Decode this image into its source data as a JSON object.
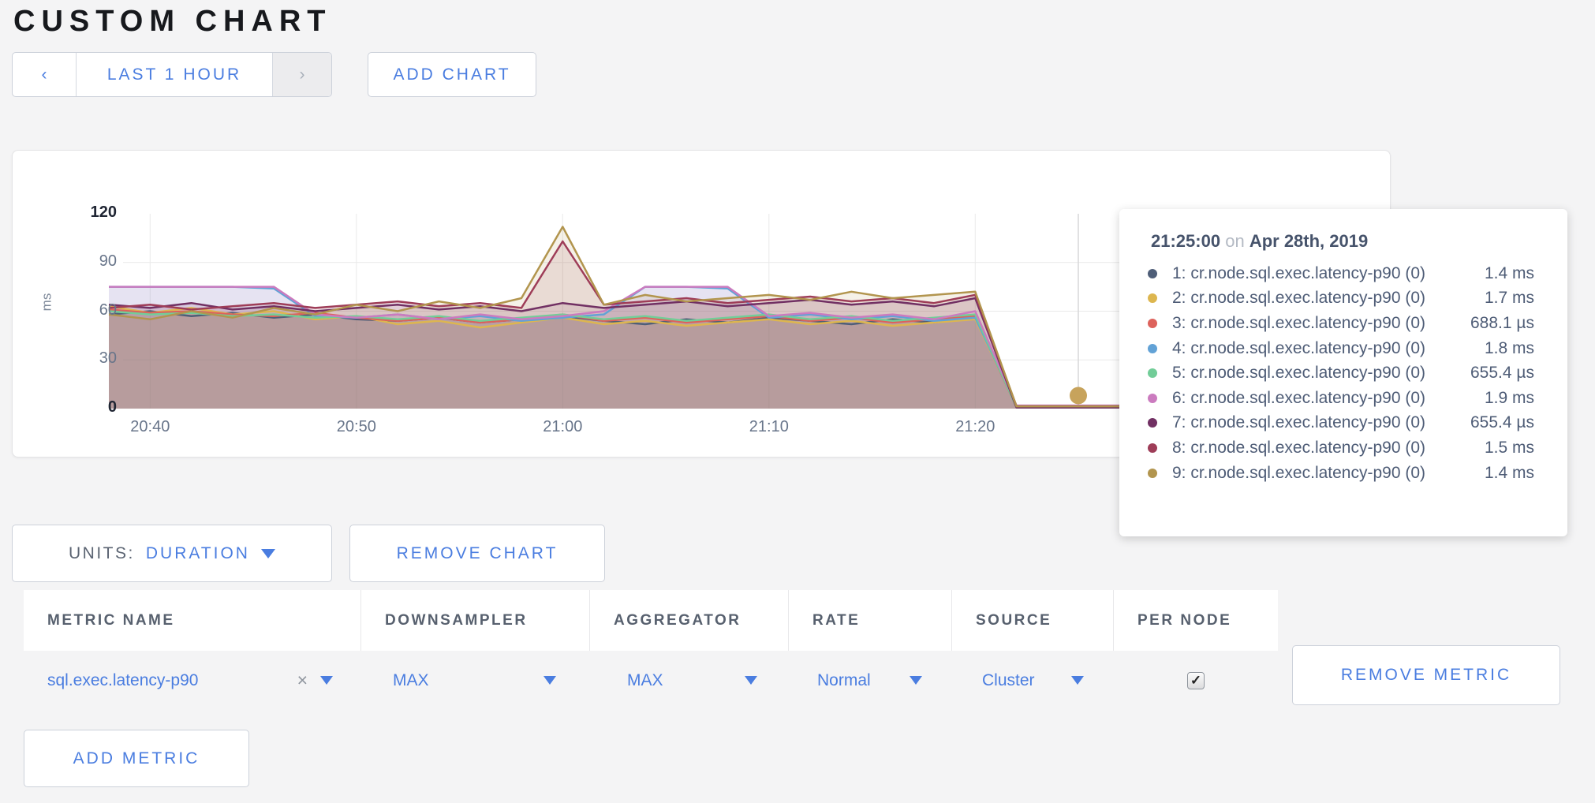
{
  "page": {
    "title": "CUSTOM CHART"
  },
  "toolbar": {
    "prev_label": "‹",
    "time_window_label": "LAST 1 HOUR",
    "next_label": "›",
    "add_chart_label": "ADD CHART"
  },
  "chart_data": {
    "type": "area",
    "title": "",
    "ylabel": "ms",
    "ylim": [
      0,
      120
    ],
    "yticks": [
      0,
      30,
      60,
      90,
      120
    ],
    "x_unit": "minutes since 20:38",
    "x": [
      0,
      2,
      4,
      6,
      8,
      10,
      12,
      14,
      16,
      18,
      20,
      22,
      24,
      26,
      28,
      30,
      32,
      34,
      36,
      38,
      40,
      42,
      44,
      46,
      48,
      50,
      52
    ],
    "xticks": [
      {
        "t": 2,
        "label": "20:40"
      },
      {
        "t": 12,
        "label": "20:50"
      },
      {
        "t": 22,
        "label": "21:00"
      },
      {
        "t": 32,
        "label": "21:10"
      },
      {
        "t": 42,
        "label": "21:20"
      }
    ],
    "grid": true,
    "legend_position": "tooltip",
    "series": [
      {
        "name": "1: cr.node.sql.exec.latency-p90 (0)",
        "color": "#4f5e78",
        "values": [
          58,
          60,
          57,
          59,
          56,
          58,
          55,
          54,
          56,
          53,
          55,
          57,
          54,
          52,
          55,
          53,
          56,
          54,
          52,
          55,
          53,
          56,
          1.4,
          1.4,
          1.4,
          1.4,
          1.4
        ]
      },
      {
        "name": "2: cr.node.sql.exec.latency-p90 (0)",
        "color": "#ddb64f",
        "values": [
          63,
          59,
          62,
          58,
          60,
          55,
          57,
          52,
          54,
          50,
          53,
          56,
          52,
          54,
          51,
          53,
          55,
          52,
          54,
          51,
          53,
          55,
          1.7,
          1.7,
          1.7,
          1.7,
          1.7
        ]
      },
      {
        "name": "3: cr.node.sql.exec.latency-p90 (0)",
        "color": "#dd625c",
        "values": [
          61,
          59,
          60,
          58,
          57,
          59,
          56,
          54,
          56,
          53,
          55,
          58,
          54,
          56,
          53,
          55,
          57,
          54,
          56,
          53,
          55,
          57,
          0.7,
          0.7,
          0.7,
          0.7,
          0.7
        ]
      },
      {
        "name": "4: cr.node.sql.exec.latency-p90 (0)",
        "color": "#62a2d6",
        "values": [
          75,
          75,
          75,
          75,
          74,
          57,
          56,
          58,
          55,
          57,
          54,
          56,
          58,
          75,
          75,
          74,
          56,
          58,
          55,
          57,
          54,
          56,
          1.8,
          1.8,
          1.8,
          1.8,
          1.8
        ]
      },
      {
        "name": "5: cr.node.sql.exec.latency-p90 (0)",
        "color": "#72cd98",
        "values": [
          60,
          58,
          59,
          57,
          58,
          56,
          57,
          55,
          57,
          54,
          56,
          58,
          55,
          57,
          54,
          56,
          58,
          55,
          57,
          54,
          56,
          58,
          0.7,
          0.7,
          0.7,
          0.7,
          0.7
        ]
      },
      {
        "name": "6: cr.node.sql.exec.latency-p90 (0)",
        "color": "#cb7bbf",
        "values": [
          75,
          75,
          75,
          75,
          75,
          58,
          56,
          58,
          55,
          58,
          55,
          57,
          60,
          75,
          75,
          75,
          57,
          59,
          56,
          58,
          55,
          60,
          1.9,
          1.9,
          1.9,
          1.9,
          1.9
        ]
      },
      {
        "name": "7: cr.node.sql.exec.latency-p90 (0)",
        "color": "#713063",
        "values": [
          64,
          62,
          65,
          61,
          63,
          60,
          62,
          64,
          61,
          63,
          60,
          65,
          62,
          64,
          66,
          63,
          65,
          67,
          64,
          66,
          63,
          68,
          0.7,
          0.7,
          0.7,
          0.7,
          0.7
        ]
      },
      {
        "name": "8: cr.node.sql.exec.latency-p90 (0)",
        "color": "#9e3d58",
        "values": [
          62,
          64,
          61,
          63,
          65,
          62,
          64,
          66,
          63,
          65,
          62,
          103,
          64,
          66,
          68,
          65,
          67,
          69,
          66,
          68,
          65,
          70,
          1.5,
          1.5,
          1.5,
          1.5,
          1.5
        ]
      },
      {
        "name": "9: cr.node.sql.exec.latency-p90 (0)",
        "color": "#b2954e",
        "values": [
          58,
          55,
          60,
          56,
          62,
          58,
          64,
          60,
          66,
          62,
          68,
          112,
          64,
          70,
          66,
          68,
          70,
          67,
          72,
          68,
          70,
          72,
          1.4,
          1.4,
          1.4,
          1.4,
          1.4
        ]
      }
    ],
    "hover": {
      "t": 47,
      "time_label": "21:25",
      "dot_value": 8,
      "dot_color": "#c7a35c"
    }
  },
  "tooltip": {
    "time": "21:25:00",
    "on_word": "on",
    "date": "Apr 28th, 2019",
    "rows": [
      {
        "label": "1: cr.node.sql.exec.latency-p90 (0)",
        "value": "1.4 ms",
        "color": "#4f5e78"
      },
      {
        "label": "2: cr.node.sql.exec.latency-p90 (0)",
        "value": "1.7 ms",
        "color": "#ddb64f"
      },
      {
        "label": "3: cr.node.sql.exec.latency-p90 (0)",
        "value": "688.1 µs",
        "color": "#dd625c"
      },
      {
        "label": "4: cr.node.sql.exec.latency-p90 (0)",
        "value": "1.8 ms",
        "color": "#62a2d6"
      },
      {
        "label": "5: cr.node.sql.exec.latency-p90 (0)",
        "value": "655.4 µs",
        "color": "#72cd98"
      },
      {
        "label": "6: cr.node.sql.exec.latency-p90 (0)",
        "value": "1.9 ms",
        "color": "#cb7bbf"
      },
      {
        "label": "7: cr.node.sql.exec.latency-p90 (0)",
        "value": "655.4 µs",
        "color": "#713063"
      },
      {
        "label": "8: cr.node.sql.exec.latency-p90 (0)",
        "value": "1.5 ms",
        "color": "#9e3d58"
      },
      {
        "label": "9: cr.node.sql.exec.latency-p90 (0)",
        "value": "1.4 ms",
        "color": "#b2954e"
      }
    ]
  },
  "chart_controls": {
    "units_label": "UNITS:",
    "units_value": "DURATION",
    "remove_chart_label": "REMOVE CHART"
  },
  "metrics_table": {
    "headers": [
      "METRIC NAME",
      "DOWNSAMPLER",
      "AGGREGATOR",
      "RATE",
      "SOURCE",
      "PER NODE"
    ],
    "row": {
      "metric_name": "sql.exec.latency-p90",
      "clear_label": "×",
      "downsampler": "MAX",
      "aggregator": "MAX",
      "rate": "Normal",
      "source": "Cluster",
      "per_node_checked": "✓",
      "remove_label": "REMOVE METRIC"
    }
  },
  "footer": {
    "add_metric_label": "ADD METRIC"
  }
}
